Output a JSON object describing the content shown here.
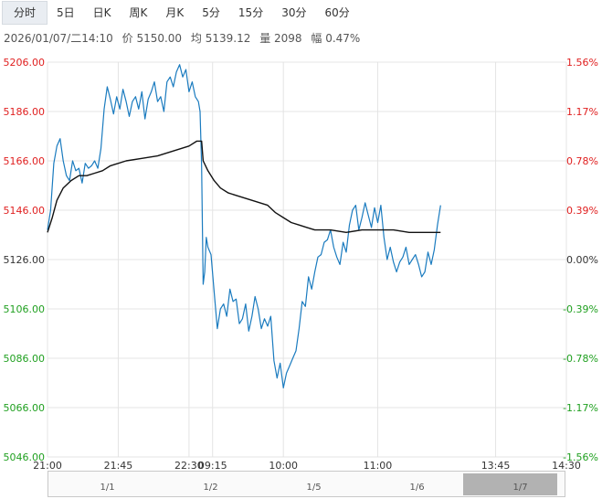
{
  "tabs": [
    "分时",
    "5日",
    "日K",
    "周K",
    "月K",
    "5分",
    "15分",
    "30分",
    "60分"
  ],
  "active_tab": 0,
  "info": {
    "datetime": "2026/01/07/二14:10",
    "price_label": "价 5150.00",
    "avg_label": "均 5139.12",
    "volume_label": "量 2098",
    "change_label": "幅 0.47%"
  },
  "colors": {
    "up": "#e02020",
    "down": "#20a020",
    "neutral": "#333333",
    "price_line": "#1a7bbf",
    "avg_line": "#111111",
    "grid": "#e4e4e4"
  },
  "chart_data": {
    "type": "line",
    "ylim": [
      5046,
      5206
    ],
    "base_price": 5126,
    "y_ticks_left": [
      "5206.00",
      "5186.00",
      "5166.00",
      "5146.00",
      "5126.00",
      "5106.00",
      "5086.00",
      "5066.00",
      "5046.00"
    ],
    "y_ticks_right": [
      "1.56%",
      "1.17%",
      "0.78%",
      "0.39%",
      "0.00%",
      "-0.39%",
      "-0.78%",
      "-1.17%",
      "-1.56%"
    ],
    "x_ticks": [
      "21:00",
      "21:45",
      "22:30",
      "09:15",
      "10:00",
      "11:00",
      "13:45",
      "14:30"
    ],
    "x_tick_index": [
      0,
      45,
      90,
      105,
      150,
      210,
      285,
      330
    ],
    "total_points": 330,
    "series": [
      {
        "key": "price",
        "points": [
          [
            0,
            5138
          ],
          [
            2,
            5146
          ],
          [
            4,
            5165
          ],
          [
            6,
            5172
          ],
          [
            8,
            5175
          ],
          [
            10,
            5166
          ],
          [
            12,
            5160
          ],
          [
            14,
            5158
          ],
          [
            16,
            5166
          ],
          [
            18,
            5162
          ],
          [
            20,
            5163
          ],
          [
            22,
            5157
          ],
          [
            24,
            5165
          ],
          [
            26,
            5163
          ],
          [
            28,
            5164
          ],
          [
            30,
            5166
          ],
          [
            32,
            5163
          ],
          [
            34,
            5171
          ],
          [
            36,
            5187
          ],
          [
            38,
            5196
          ],
          [
            40,
            5191
          ],
          [
            42,
            5185
          ],
          [
            44,
            5192
          ],
          [
            46,
            5187
          ],
          [
            48,
            5195
          ],
          [
            50,
            5190
          ],
          [
            52,
            5184
          ],
          [
            54,
            5190
          ],
          [
            56,
            5192
          ],
          [
            58,
            5187
          ],
          [
            60,
            5194
          ],
          [
            62,
            5183
          ],
          [
            64,
            5191
          ],
          [
            66,
            5194
          ],
          [
            68,
            5198
          ],
          [
            70,
            5190
          ],
          [
            72,
            5192
          ],
          [
            74,
            5186
          ],
          [
            76,
            5198
          ],
          [
            78,
            5200
          ],
          [
            80,
            5196
          ],
          [
            82,
            5202
          ],
          [
            84,
            5205
          ],
          [
            86,
            5200
          ],
          [
            88,
            5203
          ],
          [
            90,
            5194
          ],
          [
            92,
            5198
          ],
          [
            94,
            5192
          ],
          [
            96,
            5190
          ],
          [
            97,
            5186
          ],
          [
            98,
            5164
          ],
          [
            99,
            5116
          ],
          [
            100,
            5121
          ],
          [
            101,
            5135
          ],
          [
            102,
            5131
          ],
          [
            104,
            5128
          ],
          [
            106,
            5113
          ],
          [
            108,
            5098
          ],
          [
            110,
            5106
          ],
          [
            112,
            5108
          ],
          [
            114,
            5103
          ],
          [
            116,
            5114
          ],
          [
            118,
            5109
          ],
          [
            120,
            5110
          ],
          [
            122,
            5100
          ],
          [
            124,
            5102
          ],
          [
            126,
            5108
          ],
          [
            128,
            5097
          ],
          [
            130,
            5103
          ],
          [
            132,
            5111
          ],
          [
            134,
            5106
          ],
          [
            136,
            5098
          ],
          [
            138,
            5102
          ],
          [
            140,
            5099
          ],
          [
            142,
            5103
          ],
          [
            144,
            5085
          ],
          [
            146,
            5078
          ],
          [
            148,
            5084
          ],
          [
            150,
            5074
          ],
          [
            152,
            5080
          ],
          [
            154,
            5083
          ],
          [
            156,
            5086
          ],
          [
            158,
            5089
          ],
          [
            160,
            5098
          ],
          [
            162,
            5109
          ],
          [
            164,
            5107
          ],
          [
            166,
            5119
          ],
          [
            168,
            5114
          ],
          [
            170,
            5121
          ],
          [
            172,
            5127
          ],
          [
            174,
            5128
          ],
          [
            176,
            5133
          ],
          [
            178,
            5134
          ],
          [
            180,
            5138
          ],
          [
            182,
            5131
          ],
          [
            184,
            5127
          ],
          [
            186,
            5124
          ],
          [
            188,
            5133
          ],
          [
            190,
            5129
          ],
          [
            192,
            5140
          ],
          [
            194,
            5146
          ],
          [
            196,
            5148
          ],
          [
            198,
            5138
          ],
          [
            200,
            5143
          ],
          [
            202,
            5149
          ],
          [
            204,
            5144
          ],
          [
            206,
            5139
          ],
          [
            208,
            5147
          ],
          [
            210,
            5141
          ],
          [
            212,
            5148
          ],
          [
            214,
            5135
          ],
          [
            216,
            5126
          ],
          [
            218,
            5131
          ],
          [
            220,
            5125
          ],
          [
            222,
            5121
          ],
          [
            224,
            5125
          ],
          [
            226,
            5127
          ],
          [
            228,
            5131
          ],
          [
            230,
            5124
          ],
          [
            232,
            5126
          ],
          [
            234,
            5128
          ],
          [
            236,
            5124
          ],
          [
            238,
            5119
          ],
          [
            240,
            5121
          ],
          [
            242,
            5129
          ],
          [
            244,
            5124
          ],
          [
            246,
            5130
          ],
          [
            248,
            5140
          ],
          [
            250,
            5148
          ]
        ]
      },
      {
        "key": "avg",
        "points": [
          [
            0,
            5137
          ],
          [
            3,
            5143
          ],
          [
            6,
            5150
          ],
          [
            10,
            5155
          ],
          [
            15,
            5158
          ],
          [
            20,
            5160
          ],
          [
            25,
            5160
          ],
          [
            30,
            5161
          ],
          [
            35,
            5162
          ],
          [
            40,
            5164
          ],
          [
            50,
            5166
          ],
          [
            60,
            5167
          ],
          [
            70,
            5168
          ],
          [
            80,
            5170
          ],
          [
            90,
            5172
          ],
          [
            95,
            5174
          ],
          [
            98,
            5174
          ],
          [
            99,
            5166
          ],
          [
            102,
            5162
          ],
          [
            106,
            5158
          ],
          [
            110,
            5155
          ],
          [
            115,
            5153
          ],
          [
            120,
            5152
          ],
          [
            130,
            5150
          ],
          [
            140,
            5148
          ],
          [
            145,
            5145
          ],
          [
            150,
            5143
          ],
          [
            155,
            5141
          ],
          [
            160,
            5140
          ],
          [
            165,
            5139
          ],
          [
            170,
            5138
          ],
          [
            180,
            5138
          ],
          [
            190,
            5137
          ],
          [
            200,
            5138
          ],
          [
            210,
            5138
          ],
          [
            220,
            5138
          ],
          [
            230,
            5137
          ],
          [
            240,
            5137
          ],
          [
            250,
            5137
          ]
        ]
      }
    ]
  },
  "navigator": {
    "labels": [
      "1/1",
      "1/2",
      "1/5",
      "1/6",
      "1/7"
    ],
    "label_pos": [
      0.1,
      0.3,
      0.5,
      0.7,
      0.9
    ]
  }
}
